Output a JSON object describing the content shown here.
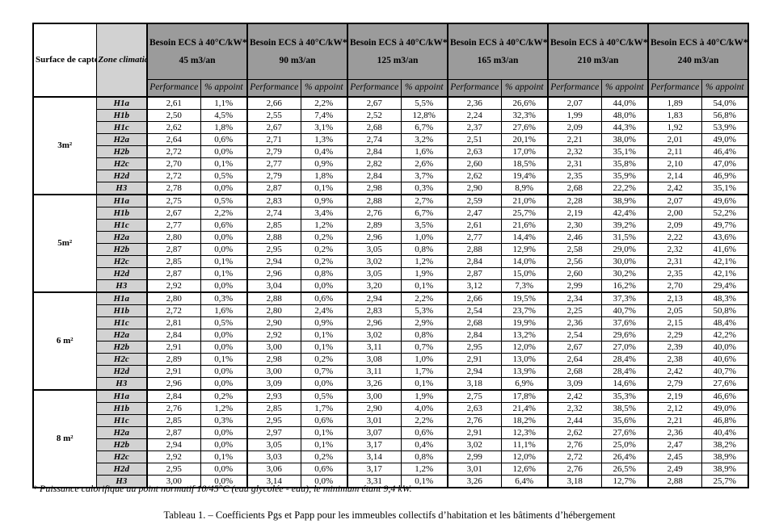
{
  "colors": {
    "header_bg": "#9b9b9b",
    "zone_bg": "#d2d2d2",
    "border": "#000000",
    "page_bg": "#ffffff"
  },
  "footnote": "* Puissance calorifique au point normatif 10/45°C (eau glycolée - eau), le minimum étant 9,4 kW.",
  "caption": "Tableau 1. – Coefficients Pgs et Papp pour les immeubles collectifs d’habitation et les bâtiments d’hébergement",
  "table": {
    "corner": {
      "surface_header": "Surface de capteur par kW*",
      "zone_header": "Zone climatique"
    },
    "col_groups": [
      {
        "besoin": "Besoin ECS à 40°C/kW*",
        "volume": "45 m3/an"
      },
      {
        "besoin": "Besoin ECS à 40°C/kW*",
        "volume": "90 m3/an"
      },
      {
        "besoin": "Besoin ECS à 40°C/kW*",
        "volume": "125 m3/an"
      },
      {
        "besoin": "Besoin ECS à 40°C/kW*",
        "volume": "165 m3/an"
      },
      {
        "besoin": "Besoin ECS à 40°C/kW*",
        "volume": "210 m3/an"
      },
      {
        "besoin": "Besoin ECS à 40°C/kW*",
        "volume": "240 m3/an"
      }
    ],
    "subheaders": {
      "performance": "Performance",
      "appoint": "% appoint"
    },
    "surface_groups": [
      {
        "surface": "3m²",
        "rows": [
          {
            "zone": "H1a",
            "values": [
              "2,61",
              "1,1%",
              "2,66",
              "2,2%",
              "2,67",
              "5,5%",
              "2,36",
              "26,6%",
              "2,07",
              "44,0%",
              "1,89",
              "54,0%"
            ]
          },
          {
            "zone": "H1b",
            "values": [
              "2,50",
              "4,5%",
              "2,55",
              "7,4%",
              "2,52",
              "12,8%",
              "2,24",
              "32,3%",
              "1,99",
              "48,0%",
              "1,83",
              "56,8%"
            ]
          },
          {
            "zone": "H1c",
            "values": [
              "2,62",
              "1,8%",
              "2,67",
              "3,1%",
              "2,68",
              "6,7%",
              "2,37",
              "27,6%",
              "2,09",
              "44,3%",
              "1,92",
              "53,9%"
            ]
          },
          {
            "zone": "H2a",
            "values": [
              "2,64",
              "0,6%",
              "2,71",
              "1,3%",
              "2,74",
              "3,2%",
              "2,51",
              "20,1%",
              "2,21",
              "38,0%",
              "2,01",
              "49,0%"
            ]
          },
          {
            "zone": "H2b",
            "values": [
              "2,72",
              "0,0%",
              "2,79",
              "0,4%",
              "2,84",
              "1,6%",
              "2,63",
              "17,0%",
              "2,32",
              "35,1%",
              "2,11",
              "46,4%"
            ]
          },
          {
            "zone": "H2c",
            "values": [
              "2,70",
              "0,1%",
              "2,77",
              "0,9%",
              "2,82",
              "2,6%",
              "2,60",
              "18,5%",
              "2,31",
              "35,8%",
              "2,10",
              "47,0%"
            ]
          },
          {
            "zone": "H2d",
            "values": [
              "2,72",
              "0,5%",
              "2,79",
              "1,8%",
              "2,84",
              "3,7%",
              "2,62",
              "19,4%",
              "2,35",
              "35,9%",
              "2,14",
              "46,9%"
            ]
          },
          {
            "zone": "H3",
            "values": [
              "2,78",
              "0,0%",
              "2,87",
              "0,1%",
              "2,98",
              "0,3%",
              "2,90",
              "8,9%",
              "2,68",
              "22,2%",
              "2,42",
              "35,1%"
            ]
          }
        ]
      },
      {
        "surface": "5m²",
        "rows": [
          {
            "zone": "H1a",
            "values": [
              "2,75",
              "0,5%",
              "2,83",
              "0,9%",
              "2,88",
              "2,7%",
              "2,59",
              "21,0%",
              "2,28",
              "38,9%",
              "2,07",
              "49,6%"
            ]
          },
          {
            "zone": "H1b",
            "values": [
              "2,67",
              "2,2%",
              "2,74",
              "3,4%",
              "2,76",
              "6,7%",
              "2,47",
              "25,7%",
              "2,19",
              "42,4%",
              "2,00",
              "52,2%"
            ]
          },
          {
            "zone": "H1c",
            "values": [
              "2,77",
              "0,6%",
              "2,85",
              "1,2%",
              "2,89",
              "3,5%",
              "2,61",
              "21,6%",
              "2,30",
              "39,2%",
              "2,09",
              "49,7%"
            ]
          },
          {
            "zone": "H2a",
            "values": [
              "2,80",
              "0,0%",
              "2,88",
              "0,2%",
              "2,96",
              "1,0%",
              "2,77",
              "14,4%",
              "2,46",
              "31,5%",
              "2,22",
              "43,6%"
            ]
          },
          {
            "zone": "H2b",
            "values": [
              "2,87",
              "0,0%",
              "2,95",
              "0,2%",
              "3,05",
              "0,8%",
              "2,88",
              "12,9%",
              "2,58",
              "29,0%",
              "2,32",
              "41,6%"
            ]
          },
          {
            "zone": "H2c",
            "values": [
              "2,85",
              "0,1%",
              "2,94",
              "0,2%",
              "3,02",
              "1,2%",
              "2,84",
              "14,0%",
              "2,56",
              "30,0%",
              "2,31",
              "42,1%"
            ]
          },
          {
            "zone": "H2d",
            "values": [
              "2,87",
              "0,1%",
              "2,96",
              "0,8%",
              "3,05",
              "1,9%",
              "2,87",
              "15,0%",
              "2,60",
              "30,2%",
              "2,35",
              "42,1%"
            ]
          },
          {
            "zone": "H3",
            "values": [
              "2,92",
              "0,0%",
              "3,04",
              "0,0%",
              "3,20",
              "0,1%",
              "3,12",
              "7,3%",
              "2,99",
              "16,2%",
              "2,70",
              "29,4%"
            ]
          }
        ]
      },
      {
        "surface": "6 m²",
        "rows": [
          {
            "zone": "H1a",
            "values": [
              "2,80",
              "0,3%",
              "2,88",
              "0,6%",
              "2,94",
              "2,2%",
              "2,66",
              "19,5%",
              "2,34",
              "37,3%",
              "2,13",
              "48,3%"
            ]
          },
          {
            "zone": "H1b",
            "values": [
              "2,72",
              "1,6%",
              "2,80",
              "2,4%",
              "2,83",
              "5,3%",
              "2,54",
              "23,7%",
              "2,25",
              "40,7%",
              "2,05",
              "50,8%"
            ]
          },
          {
            "zone": "H1c",
            "values": [
              "2,81",
              "0,5%",
              "2,90",
              "0,9%",
              "2,96",
              "2,9%",
              "2,68",
              "19,9%",
              "2,36",
              "37,6%",
              "2,15",
              "48,4%"
            ]
          },
          {
            "zone": "H2a",
            "values": [
              "2,84",
              "0,0%",
              "2,92",
              "0,1%",
              "3,02",
              "0,8%",
              "2,84",
              "13,2%",
              "2,54",
              "29,6%",
              "2,29",
              "42,2%"
            ]
          },
          {
            "zone": "H2b",
            "values": [
              "2,91",
              "0,0%",
              "3,00",
              "0,1%",
              "3,11",
              "0,7%",
              "2,95",
              "12,0%",
              "2,67",
              "27,0%",
              "2,39",
              "40,0%"
            ]
          },
          {
            "zone": "H2c",
            "values": [
              "2,89",
              "0,1%",
              "2,98",
              "0,2%",
              "3,08",
              "1,0%",
              "2,91",
              "13,0%",
              "2,64",
              "28,4%",
              "2,38",
              "40,6%"
            ]
          },
          {
            "zone": "H2d",
            "values": [
              "2,91",
              "0,0%",
              "3,00",
              "0,7%",
              "3,11",
              "1,7%",
              "2,94",
              "13,9%",
              "2,68",
              "28,4%",
              "2,42",
              "40,7%"
            ]
          },
          {
            "zone": "H3",
            "values": [
              "2,96",
              "0,0%",
              "3,09",
              "0,0%",
              "3,26",
              "0,1%",
              "3,18",
              "6,9%",
              "3,09",
              "14,6%",
              "2,79",
              "27,6%"
            ]
          }
        ]
      },
      {
        "surface": "8 m²",
        "rows": [
          {
            "zone": "H1a",
            "values": [
              "2,84",
              "0,2%",
              "2,93",
              "0,5%",
              "3,00",
              "1,9%",
              "2,75",
              "17,8%",
              "2,42",
              "35,3%",
              "2,19",
              "46,6%"
            ]
          },
          {
            "zone": "H1b",
            "values": [
              "2,76",
              "1,2%",
              "2,85",
              "1,7%",
              "2,90",
              "4,0%",
              "2,63",
              "21,4%",
              "2,32",
              "38,5%",
              "2,12",
              "49,0%"
            ]
          },
          {
            "zone": "H1c",
            "values": [
              "2,85",
              "0,3%",
              "2,95",
              "0,6%",
              "3,01",
              "2,2%",
              "2,76",
              "18,2%",
              "2,44",
              "35,6%",
              "2,21",
              "46,8%"
            ]
          },
          {
            "zone": "H2a",
            "values": [
              "2,87",
              "0,0%",
              "2,97",
              "0,1%",
              "3,07",
              "0,6%",
              "2,91",
              "12,3%",
              "2,62",
              "27,6%",
              "2,36",
              "40,4%"
            ]
          },
          {
            "zone": "H2b",
            "values": [
              "2,94",
              "0,0%",
              "3,05",
              "0,1%",
              "3,17",
              "0,4%",
              "3,02",
              "11,1%",
              "2,76",
              "25,0%",
              "2,47",
              "38,2%"
            ]
          },
          {
            "zone": "H2c",
            "values": [
              "2,92",
              "0,1%",
              "3,03",
              "0,2%",
              "3,14",
              "0,8%",
              "2,99",
              "12,0%",
              "2,72",
              "26,4%",
              "2,45",
              "38,9%"
            ]
          },
          {
            "zone": "H2d",
            "values": [
              "2,95",
              "0,0%",
              "3,06",
              "0,6%",
              "3,17",
              "1,2%",
              "3,01",
              "12,6%",
              "2,76",
              "26,5%",
              "2,49",
              "38,9%"
            ]
          },
          {
            "zone": "H3",
            "values": [
              "3,00",
              "0,0%",
              "3,14",
              "0,0%",
              "3,31",
              "0,1%",
              "3,26",
              "6,4%",
              "3,18",
              "12,7%",
              "2,88",
              "25,7%"
            ]
          }
        ]
      }
    ]
  }
}
